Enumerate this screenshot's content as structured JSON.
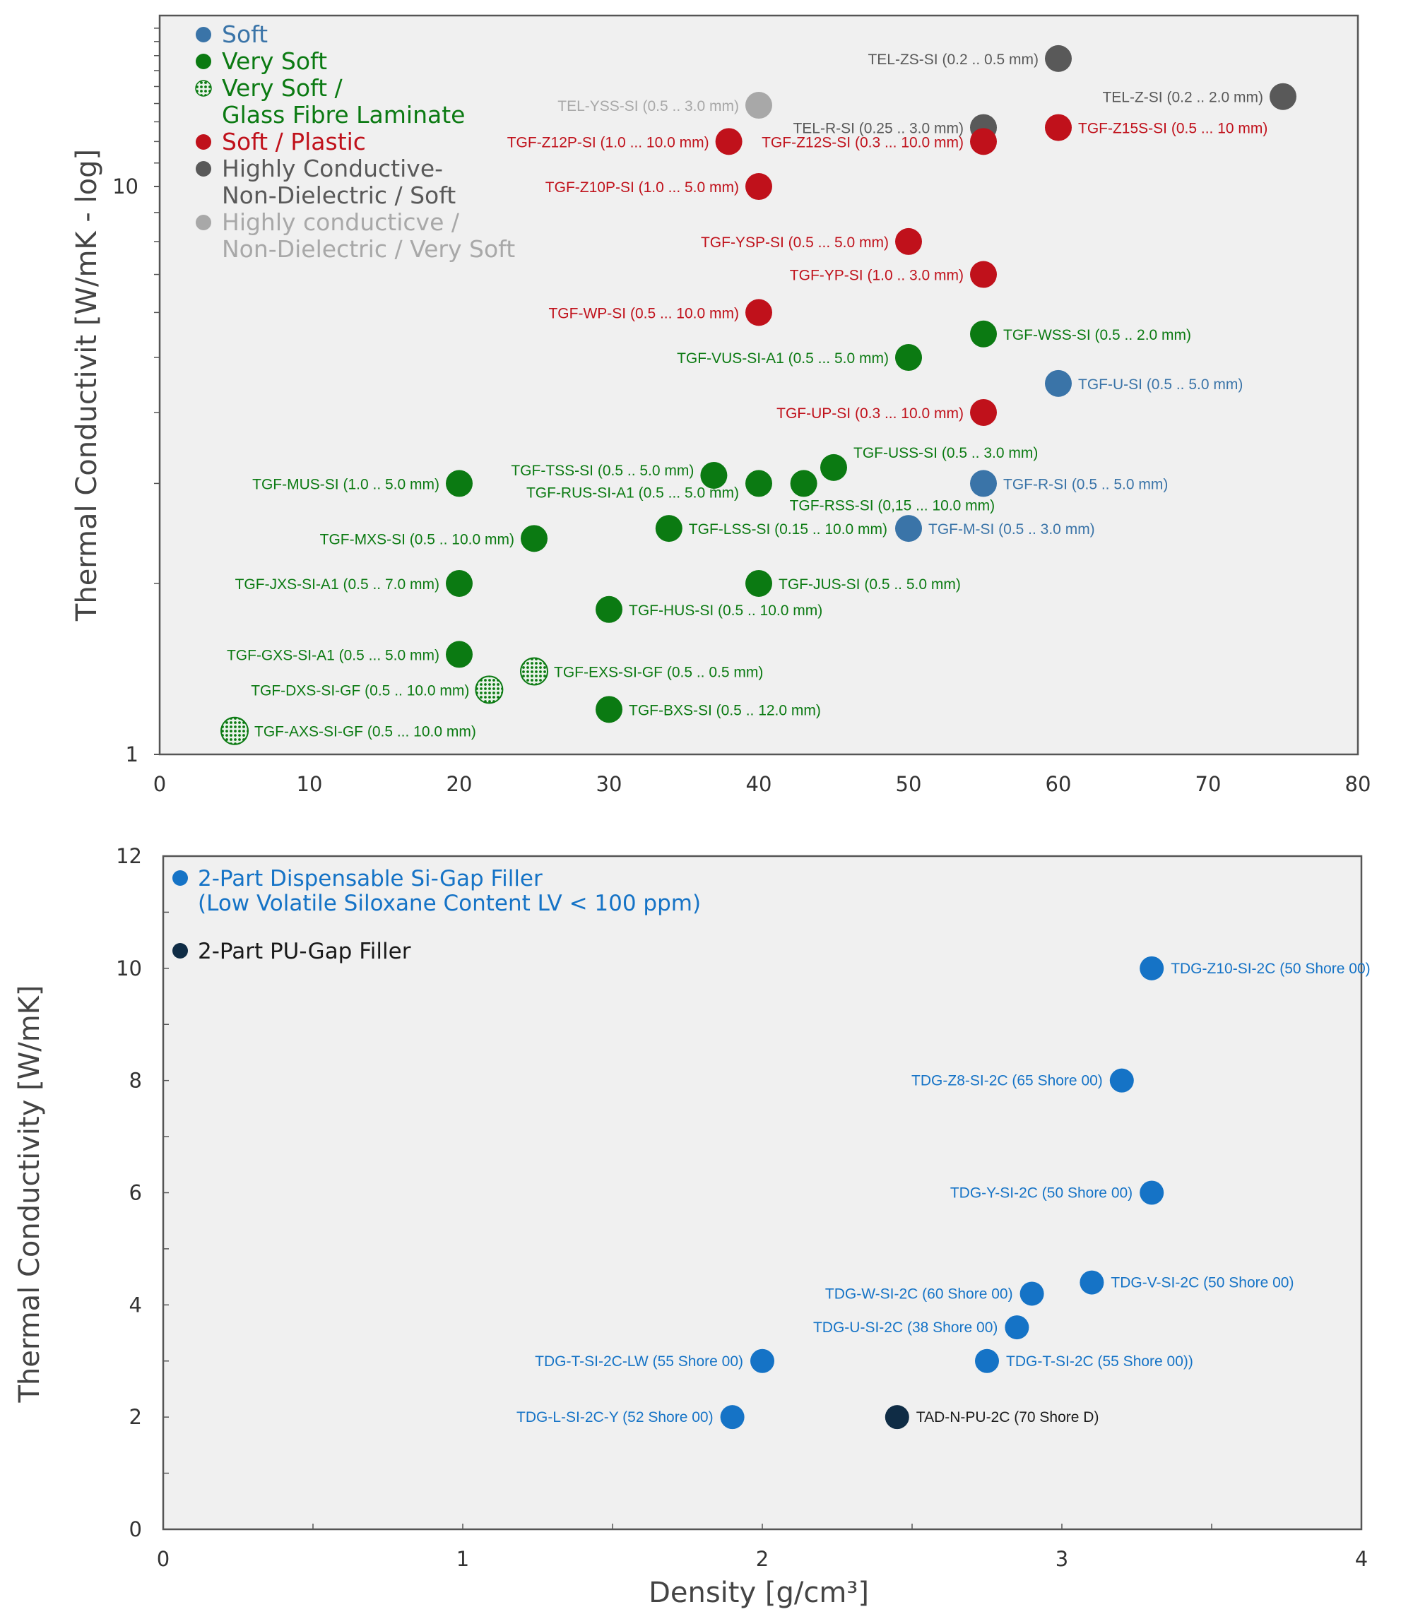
{
  "colors": {
    "soft": "#3A74A8",
    "very_soft": "#0B7A12",
    "plastic": "#C0111B",
    "highly_conductive": "#595959",
    "highly_conductive_very_soft": "#A8A8A8",
    "dispensable": "#1573C6",
    "pu": "#0F2C45",
    "plot_bg": "#F0F0F0"
  },
  "chart_data": [
    {
      "type": "scatter",
      "title": "",
      "xlabel": "",
      "ylabel": "Thermal Conductivit [W/mK - log]",
      "xlim": [
        0,
        80
      ],
      "ylim": [
        1,
        20
      ],
      "yscale": "log",
      "x_ticks": [
        "0",
        "10",
        "20",
        "30",
        "40",
        "50",
        "60",
        "70",
        "80"
      ],
      "y_ticks": [
        "1",
        "10"
      ],
      "legend": [
        {
          "key": "soft",
          "lines": [
            "Soft"
          ]
        },
        {
          "key": "very_soft",
          "lines": [
            "Very Soft"
          ]
        },
        {
          "key": "very_soft_gf",
          "lines": [
            "Very Soft /",
            "Glass Fibre Laminate"
          ]
        },
        {
          "key": "plastic",
          "lines": [
            "Soft / Plastic"
          ]
        },
        {
          "key": "highly_conductive",
          "lines": [
            "Highly Conductive-",
            "Non-Dielectric / Soft"
          ]
        },
        {
          "key": "highly_conductive_very_soft",
          "lines": [
            "Highly conducticve /",
            "Non-Dielectric / Very Soft"
          ]
        }
      ],
      "points": [
        {
          "label": "TEL-ZS-SI (0.2 .. 0.5 mm)",
          "x": 60,
          "y": 16.8,
          "cat": "highly_conductive",
          "side": "left"
        },
        {
          "label": "TEL-Z-SI (0.2 .. 2.0 mm)",
          "x": 75,
          "y": 14.4,
          "cat": "highly_conductive",
          "side": "left"
        },
        {
          "label": "TEL-YSS-SI (0.5 .. 3.0 mm)",
          "x": 40,
          "y": 13.9,
          "cat": "highly_conductive_very_soft",
          "side": "left"
        },
        {
          "label": "TEL-R-SI (0.25 .. 3.0 mm)",
          "x": 55,
          "y": 12.7,
          "cat": "highly_conductive",
          "side": "left"
        },
        {
          "label": "TGF-Z15S-SI (0.5 ... 10 mm)",
          "x": 60,
          "y": 12.7,
          "cat": "plastic",
          "side": "right"
        },
        {
          "label": "TGF-Z12P-SI (1.0 ... 10.0 mm)",
          "x": 38,
          "y": 12,
          "cat": "plastic",
          "side": "left"
        },
        {
          "label": "TGF-Z12S-SI (0.3 ... 10.0 mm)",
          "x": 55,
          "y": 12,
          "cat": "plastic",
          "side": "left"
        },
        {
          "label": "TGF-Z10P-SI (1.0 ... 5.0 mm)",
          "x": 40,
          "y": 10,
          "cat": "plastic",
          "side": "left"
        },
        {
          "label": "TGF-YSP-SI (0.5 ... 5.0 mm)",
          "x": 50,
          "y": 8,
          "cat": "plastic",
          "side": "left"
        },
        {
          "label": "TGF-YP-SI (1.0 .. 3.0 mm)",
          "x": 55,
          "y": 7,
          "cat": "plastic",
          "side": "left"
        },
        {
          "label": "TGF-WP-SI (0.5 ... 10.0 mm)",
          "x": 40,
          "y": 6,
          "cat": "plastic",
          "side": "left"
        },
        {
          "label": "TGF-WSS-SI (0.5 .. 2.0 mm)",
          "x": 55,
          "y": 5.5,
          "cat": "very_soft",
          "side": "right"
        },
        {
          "label": "TGF-VUS-SI-A1 (0.5 ... 5.0 mm)",
          "x": 50,
          "y": 5,
          "cat": "very_soft",
          "side": "left"
        },
        {
          "label": "TGF-U-SI (0.5 .. 5.0 mm)",
          "x": 60,
          "y": 4.5,
          "cat": "soft",
          "side": "right"
        },
        {
          "label": "TGF-UP-SI (0.3 ... 10.0 mm)",
          "x": 55,
          "y": 4,
          "cat": "plastic",
          "side": "left"
        },
        {
          "label": "TGF-USS-SI (0.5 .. 3.0 mm)",
          "x": 45,
          "y": 3.2,
          "cat": "very_soft",
          "side": "right",
          "dy": -0.55
        },
        {
          "label": "TGF-TSS-SI (0.5 .. 5.0 mm)",
          "x": 37,
          "y": 3.1,
          "cat": "very_soft",
          "side": "left",
          "dy": -0.2
        },
        {
          "label": "TGF-MUS-SI (1.0 .. 5.0 mm)",
          "x": 20,
          "y": 3,
          "cat": "very_soft",
          "side": "left"
        },
        {
          "label": "TGF-RUS-SI-A1 (0.5 ... 5.0 mm)",
          "x": 40,
          "y": 3,
          "cat": "very_soft",
          "side": "left",
          "dy": 0.3
        },
        {
          "label": "TGF-RSS-SI (0,15 ... 10.0 mm)",
          "x": 43,
          "y": 3,
          "cat": "very_soft",
          "side": "below"
        },
        {
          "label": "TGF-R-SI (0.5 .. 5.0 mm)",
          "x": 55,
          "y": 3,
          "cat": "soft",
          "side": "right"
        },
        {
          "label": "TGF-LSS-SI (0.15 .. 10.0 mm)",
          "x": 34,
          "y": 2.5,
          "cat": "very_soft",
          "side": "right"
        },
        {
          "label": "TGF-M-SI (0.5 .. 3.0 mm)",
          "x": 50,
          "y": 2.5,
          "cat": "soft",
          "side": "right"
        },
        {
          "label": "TGF-MXS-SI (0.5 .. 10.0 mm)",
          "x": 25,
          "y": 2.4,
          "cat": "very_soft",
          "side": "left"
        },
        {
          "label": "TGF-JXS-SI-A1 (0.5 .. 7.0 mm)",
          "x": 20,
          "y": 2,
          "cat": "very_soft",
          "side": "left"
        },
        {
          "label": "TGF-JUS-SI (0.5 .. 5.0 mm)",
          "x": 40,
          "y": 2,
          "cat": "very_soft",
          "side": "right"
        },
        {
          "label": "TGF-HUS-SI  (0.5 .. 10.0 mm)",
          "x": 30,
          "y": 1.8,
          "cat": "very_soft",
          "side": "right"
        },
        {
          "label": "TGF-GXS-SI-A1 (0.5 ... 5.0 mm)",
          "x": 20,
          "y": 1.5,
          "cat": "very_soft",
          "side": "left"
        },
        {
          "label": "TGF-EXS-SI-GF (0.5 .. 0.5 mm)",
          "x": 25,
          "y": 1.4,
          "cat": "very_soft_gf",
          "side": "right"
        },
        {
          "label": "TGF-DXS-SI-GF (0.5 .. 10.0 mm)",
          "x": 22,
          "y": 1.3,
          "cat": "very_soft_gf",
          "side": "left"
        },
        {
          "label": "TGF-BXS-SI (0.5 .. 12.0 mm)",
          "x": 30,
          "y": 1.2,
          "cat": "very_soft",
          "side": "right"
        },
        {
          "label": "TGF-AXS-SI-GF (0.5 ... 10.0 mm)",
          "x": 5,
          "y": 1.1,
          "cat": "very_soft_gf",
          "side": "right"
        }
      ]
    },
    {
      "type": "scatter",
      "title": "",
      "xlabel": "Density [g/cm³]",
      "ylabel": "Thermal Conductivity [W/mK]",
      "xlim": [
        0,
        4
      ],
      "ylim": [
        0,
        12
      ],
      "yscale": "linear",
      "x_ticks": [
        "0",
        "1",
        "2",
        "3",
        "4"
      ],
      "y_ticks": [
        "0",
        "2",
        "4",
        "6",
        "8",
        "10",
        "12"
      ],
      "legend": [
        {
          "key": "dispensable",
          "lines": [
            "2-Part Dispensable Si-Gap Filler",
            "(Low Volatile Siloxane Content LV < 100 ppm)"
          ]
        },
        {
          "key": "pu",
          "lines": [
            "2-Part PU-Gap Filler"
          ]
        }
      ],
      "points": [
        {
          "label": "TDG-Z10-SI-2C (50 Shore 00)",
          "x": 3.3,
          "y": 10,
          "cat": "dispensable",
          "side": "right"
        },
        {
          "label": "TDG-Z8-SI-2C (65 Shore 00)",
          "x": 3.2,
          "y": 8,
          "cat": "dispensable",
          "side": "left"
        },
        {
          "label": "TDG-Y-SI-2C (50 Shore 00)",
          "x": 3.3,
          "y": 6,
          "cat": "dispensable",
          "side": "left"
        },
        {
          "label": "TDG-V-SI-2C (50 Shore 00)",
          "x": 3.1,
          "y": 4.4,
          "cat": "dispensable",
          "side": "right"
        },
        {
          "label": "TDG-W-SI-2C (60 Shore 00)",
          "x": 2.9,
          "y": 4.2,
          "cat": "dispensable",
          "side": "left"
        },
        {
          "label": "TDG-U-SI-2C (38 Shore 00)",
          "x": 2.85,
          "y": 3.6,
          "cat": "dispensable",
          "side": "left"
        },
        {
          "label": "TDG-T-SI-2C-LW (55 Shore 00)",
          "x": 2.0,
          "y": 3.0,
          "cat": "dispensable",
          "side": "left"
        },
        {
          "label": "TDG-T-SI-2C (55 Shore 00))",
          "x": 2.75,
          "y": 3.0,
          "cat": "dispensable",
          "side": "right"
        },
        {
          "label": "TDG-L-SI-2C-Y (52 Shore 00)",
          "x": 1.9,
          "y": 2.0,
          "cat": "dispensable",
          "side": "left"
        },
        {
          "label": "TAD-N-PU-2C (70 Shore D)",
          "x": 2.45,
          "y": 2.0,
          "cat": "pu",
          "side": "right"
        }
      ]
    }
  ]
}
